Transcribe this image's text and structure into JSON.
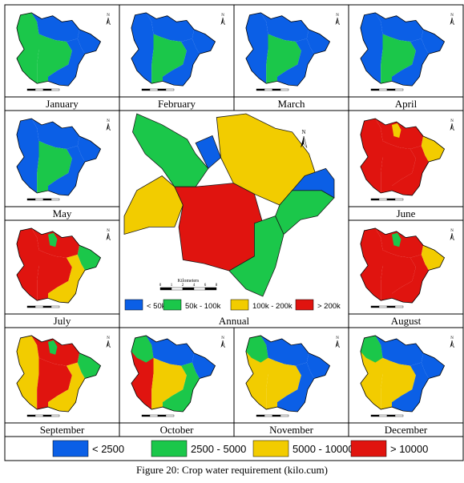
{
  "figure": {
    "caption": "Figure 20: Crop water requirement (kilo.cum)",
    "months": [
      "January",
      "February",
      "March",
      "April",
      "May",
      "June",
      "July",
      "August",
      "September",
      "October",
      "November",
      "December"
    ],
    "annual_label": "Annual",
    "annual_scale_label": "Kilometers",
    "annual_scale_ticks": [
      "0",
      "1",
      "2",
      "4",
      "6",
      "8"
    ],
    "north_label": "N"
  },
  "monthly_legend": [
    {
      "label": "< 2500",
      "color": "#0b5fe6"
    },
    {
      "label": "2500 - 5000",
      "color": "#1bc74a"
    },
    {
      "label": "5000 - 10000",
      "color": "#f2cc00"
    },
    {
      "label": "> 10000",
      "color": "#e0140f"
    }
  ],
  "annual_legend": [
    {
      "label": "< 50k",
      "color": "#0b5fe6"
    },
    {
      "label": "50k - 100k",
      "color": "#1bc74a"
    },
    {
      "label": "100k - 200k",
      "color": "#f2cc00"
    },
    {
      "label": "> 200k",
      "color": "#e0140f"
    }
  ],
  "maps": {
    "January": {
      "west": "green",
      "north": "blue",
      "center": "green",
      "southeast": "blue",
      "east": "blue"
    },
    "February": {
      "west": "blue",
      "north": "blue",
      "center": "green",
      "southeast": "blue",
      "east": "blue"
    },
    "March": {
      "west": "blue",
      "north": "blue",
      "center": "green",
      "southeast": "blue",
      "east": "blue"
    },
    "April": {
      "west": "blue",
      "north": "blue",
      "center": "green",
      "southeast": "blue",
      "east": "blue"
    },
    "May": {
      "west": "blue",
      "north": "blue",
      "center": "green",
      "southeast": "blue",
      "east": "blue"
    },
    "June": {
      "west": "red",
      "north": "red",
      "center": "red",
      "southeast": "red",
      "east": "yellow",
      "northpatch": "yellow"
    },
    "July": {
      "west": "red",
      "north": "red",
      "center": "red",
      "southeast": "yellow",
      "east": "green",
      "northpatch": "green"
    },
    "August": {
      "west": "red",
      "north": "red",
      "center": "red",
      "southeast": "red",
      "east": "yellow",
      "northpatch": "green"
    },
    "September": {
      "west": "yellow",
      "north": "red",
      "center": "red",
      "southeast": "yellow",
      "east": "green",
      "northpatch": "green"
    },
    "October": {
      "west": "red",
      "north": "blue",
      "center": "yellow",
      "southeast": "green",
      "east": "blue",
      "northwest": "green"
    },
    "November": {
      "west": "yellow",
      "north": "blue",
      "center": "yellow",
      "southeast": "blue",
      "east": "blue",
      "northwest": "green"
    },
    "December": {
      "west": "yellow",
      "north": "blue",
      "center": "yellow",
      "southeast": "blue",
      "east": "blue",
      "northwest": "green"
    },
    "Annual": {
      "northwest": "green",
      "north": "yellow",
      "west": "yellow",
      "center": "red",
      "southeast": "green",
      "east": "green",
      "northeast": "blue",
      "smallpatch": "blue"
    }
  }
}
